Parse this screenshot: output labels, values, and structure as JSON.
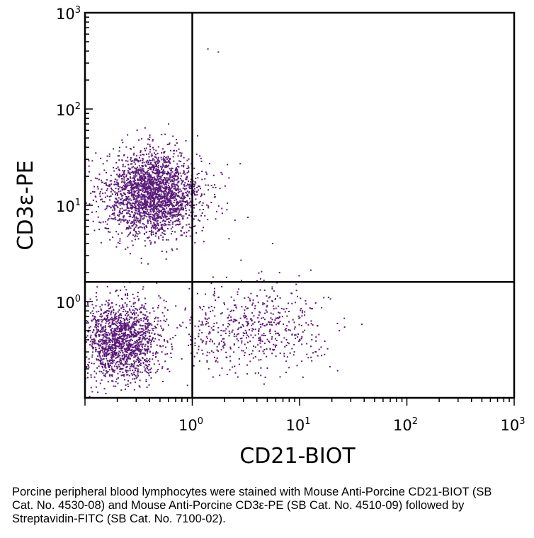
{
  "chart_data": {
    "type": "scatter",
    "xlabel": "CD21-BIOT",
    "ylabel": "CD3ε-PE",
    "xscale": "log",
    "yscale": "log",
    "xlim": [
      0.1,
      1000
    ],
    "ylim": [
      0.1,
      1000
    ],
    "point_color": "#5a1a7a",
    "x_ticks": [
      {
        "base": "10",
        "exp": "0",
        "value": 1
      },
      {
        "base": "10",
        "exp": "1",
        "value": 10
      },
      {
        "base": "10",
        "exp": "2",
        "value": 100
      },
      {
        "base": "10",
        "exp": "3",
        "value": 1000
      }
    ],
    "y_ticks": [
      {
        "base": "10",
        "exp": "0",
        "value": 1
      },
      {
        "base": "10",
        "exp": "1",
        "value": 10
      },
      {
        "base": "10",
        "exp": "2",
        "value": 100
      },
      {
        "base": "10",
        "exp": "3",
        "value": 1000
      }
    ],
    "quadrant_gates": {
      "x": 1.0,
      "y": 1.6
    },
    "populations": [
      {
        "center": [
          0.43,
          13
        ],
        "spread": [
          0.22,
          0.22
        ],
        "count": 2400
      },
      {
        "center": [
          0.22,
          0.4
        ],
        "spread": [
          0.18,
          0.2
        ],
        "count": 1600
      },
      {
        "center": [
          4.5,
          0.55
        ],
        "spread": [
          0.3,
          0.22
        ],
        "count": 450
      },
      {
        "center": [
          1.6,
          0.45
        ],
        "spread": [
          0.18,
          0.22
        ],
        "count": 120
      }
    ],
    "sparse_points": [
      [
        1.4,
        420
      ],
      [
        1.75,
        390
      ],
      [
        1.0,
        180
      ],
      [
        2.8,
        27
      ],
      [
        1.9,
        21
      ],
      [
        2.1,
        9
      ],
      [
        2.5,
        7
      ],
      [
        3.3,
        7.5
      ],
      [
        5.6,
        4
      ],
      [
        6.5,
        2
      ],
      [
        2.2,
        4.5
      ]
    ]
  },
  "caption": "Porcine peripheral blood lymphocytes were stained with Mouse Anti-Porcine CD21-BIOT (SB Cat. No. 4530-08) and Mouse Anti-Porcine CD3ε-PE (SB Cat. No. 4510-09) followed by Streptavidin-FITC (SB Cat. No. 7100-02)."
}
